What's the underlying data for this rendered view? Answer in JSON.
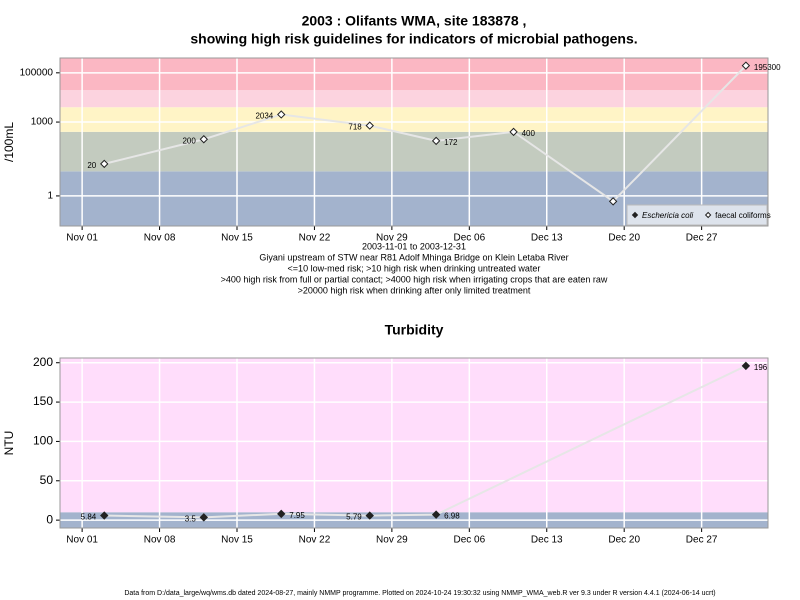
{
  "chart_data": [
    {
      "type": "line",
      "title": "2003 : Olifants WMA, site 183878 ,",
      "subtitle": "showing high risk guidelines for indicators of microbial pathogens.",
      "ylabel": "/100mL",
      "log_y": true,
      "grid": true,
      "legend": "lower right",
      "xlim": [
        "2003-10-30",
        "2004-01-02"
      ],
      "ylim": [
        0.06,
        400000
      ],
      "xticks": [
        {
          "value": "2003-11-01",
          "label": "Nov 01"
        },
        {
          "value": "2003-11-08",
          "label": "Nov 08"
        },
        {
          "value": "2003-11-15",
          "label": "Nov 15"
        },
        {
          "value": "2003-11-22",
          "label": "Nov 22"
        },
        {
          "value": "2003-11-29",
          "label": "Nov 29"
        },
        {
          "value": "2003-12-06",
          "label": "Dec 06"
        },
        {
          "value": "2003-12-13",
          "label": "Dec 13"
        },
        {
          "value": "2003-12-20",
          "label": "Dec 20"
        },
        {
          "value": "2003-12-27",
          "label": "Dec 27"
        }
      ],
      "yticks": [
        1,
        1000,
        100000
      ],
      "bands": [
        {
          "from": 0.06,
          "to": 10,
          "color": "#a3b3cd"
        },
        {
          "from": 10,
          "to": 400,
          "color": "#c3cbbf"
        },
        {
          "from": 400,
          "to": 4000,
          "color": "#fff4c6"
        },
        {
          "from": 4000,
          "to": 20000,
          "color": "#fcd3df"
        },
        {
          "from": 20000,
          "to": 400000,
          "color": "#fbb7c3"
        }
      ],
      "series": [
        {
          "name": "Eschericia coli",
          "marker": "filled",
          "color": "#222222",
          "x": [],
          "values": []
        },
        {
          "name": "faecal coliforms",
          "marker": "open",
          "color": "#222222",
          "x": [
            "2003-11-03",
            "2003-11-12",
            "2003-11-19",
            "2003-11-27",
            "2003-12-03",
            "2003-12-10",
            "2003-12-19",
            "2003-12-31"
          ],
          "values": [
            20,
            200,
            2034,
            718,
            172,
            400,
            0.6,
            195300
          ],
          "value_labels": [
            "20",
            "200",
            "2034",
            "718",
            "172",
            "400",
            null,
            "195300"
          ]
        }
      ],
      "notes": [
        "2003-11-01 to 2003-12-31",
        "Giyani upstream of STW near R81 Adolf Mhinga Bridge on Klein Letaba River",
        "<=10 low-med risk; >10 high risk when drinking untreated water",
        ">400 high risk from full or partial contact; >4000 high risk when irrigating crops that are eaten raw",
        ">20000 high risk when drinking after only limited treatment"
      ]
    },
    {
      "type": "line",
      "title": "Turbidity",
      "ylabel": "NTU",
      "log_y": false,
      "grid": true,
      "xlim": [
        "2003-10-30",
        "2004-01-02"
      ],
      "ylim": [
        -10,
        206
      ],
      "xticks": [
        {
          "value": "2003-11-01",
          "label": "Nov 01"
        },
        {
          "value": "2003-11-08",
          "label": "Nov 08"
        },
        {
          "value": "2003-11-15",
          "label": "Nov 15"
        },
        {
          "value": "2003-11-22",
          "label": "Nov 22"
        },
        {
          "value": "2003-11-29",
          "label": "Nov 29"
        },
        {
          "value": "2003-12-06",
          "label": "Dec 06"
        },
        {
          "value": "2003-12-13",
          "label": "Dec 13"
        },
        {
          "value": "2003-12-20",
          "label": "Dec 20"
        },
        {
          "value": "2003-12-27",
          "label": "Dec 27"
        }
      ],
      "yticks": [
        0,
        50,
        100,
        150,
        200
      ],
      "bands": [
        {
          "from": -10,
          "to": 10,
          "color": "#a3b3cd"
        },
        {
          "from": 10,
          "to": 206,
          "color": "#ffddfb"
        }
      ],
      "series": [
        {
          "marker": "filled",
          "color": "#222222",
          "x": [
            "2003-11-03",
            "2003-11-12",
            "2003-11-19",
            "2003-11-27",
            "2003-12-03",
            "2003-12-31"
          ],
          "values": [
            5.84,
            3.5,
            7.95,
            5.79,
            6.98,
            196
          ],
          "value_labels": [
            "5.84",
            "3.5",
            "7.95",
            "5.79",
            "6.98",
            "196"
          ]
        }
      ]
    }
  ],
  "footer": "Data from D:/data_large/wq/wms.db dated 2024-08-27, mainly NMMP programme. Plotted on 2024-10-24 19:30:32 using NMMP_WMA_web.R ver 9.3 under R version 4.4.1 (2024-06-14 ucrt)"
}
